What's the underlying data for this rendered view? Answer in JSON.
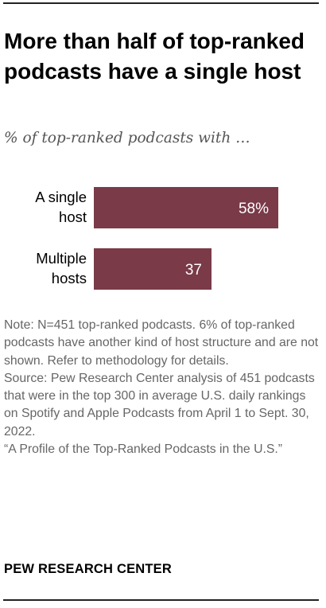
{
  "title": "More than half of top-ranked podcasts have a single host",
  "subtitle": "% of top-ranked podcasts with …",
  "chart_data": {
    "type": "bar",
    "orientation": "horizontal",
    "categories": [
      [
        "A single",
        "host"
      ],
      [
        "Multiple",
        "hosts"
      ]
    ],
    "values": [
      58,
      37
    ],
    "value_labels": [
      "58%",
      "37"
    ],
    "xlim": [
      0,
      100
    ],
    "grid": false,
    "color": "#7a3a48",
    "label_color": "#ffffff"
  },
  "note": {
    "text": "Note: N=451 top-ranked podcasts. 6% of top-ranked podcasts have another kind of host structure and are not shown. Refer to methodology for details.",
    "source": "Source: Pew Research Center analysis of 451 podcasts that were in the top 300 in average U.S. daily rankings on Spotify and Apple Podcasts from April 1 to Sept. 30, 2022.",
    "report": "“A Profile of the Top-Ranked Podcasts in the U.S.”"
  },
  "brand": "PEW RESEARCH CENTER"
}
